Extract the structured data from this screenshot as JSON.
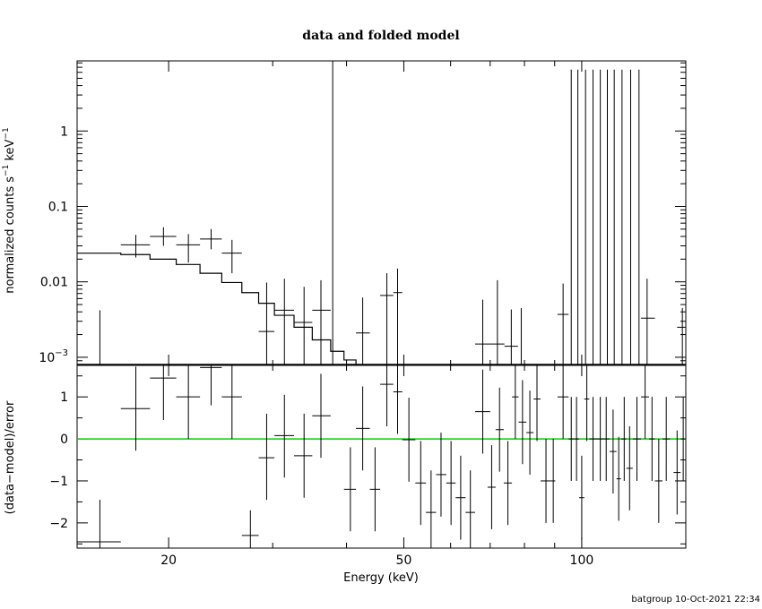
{
  "chart_data": [
    {
      "type": "scatter",
      "title": "data and folded model",
      "xlabel": "",
      "ylabel_main": "normalized counts s",
      "ylabel_sup1": "−1",
      "ylabel_mid": " keV",
      "ylabel_sup2": "−1",
      "xscale": "log",
      "yscale": "log",
      "xlim": [
        14,
        150
      ],
      "ylim": [
        0.00078,
        8.5
      ],
      "yticks": [
        {
          "value": 1,
          "label": "1"
        },
        {
          "value": 0.1,
          "label": "0.1"
        },
        {
          "value": 0.01,
          "label": "0.01"
        },
        {
          "value": 0.001,
          "base": "10",
          "exp": "−3"
        }
      ],
      "data_color": "#000000",
      "model_color": "#000000",
      "series": [
        {
          "kind": "data",
          "points": [
            {
              "x": 15.3,
              "xlo": 14.0,
              "xhi": 16.6,
              "y": 0.0008,
              "ylo": 0.0008,
              "yhi": 0.0042
            },
            {
              "x": 17.6,
              "xlo": 16.6,
              "xhi": 18.6,
              "y": 0.031,
              "ylo": 0.021,
              "yhi": 0.042
            },
            {
              "x": 19.6,
              "xlo": 18.6,
              "xhi": 20.6,
              "y": 0.04,
              "ylo": 0.03,
              "yhi": 0.053
            },
            {
              "x": 21.6,
              "xlo": 20.6,
              "xhi": 22.6,
              "y": 0.031,
              "ylo": 0.018,
              "yhi": 0.043
            },
            {
              "x": 23.6,
              "xlo": 22.6,
              "xhi": 24.6,
              "y": 0.037,
              "ylo": 0.027,
              "yhi": 0.05
            },
            {
              "x": 25.6,
              "xlo": 24.6,
              "xhi": 26.6,
              "y": 0.024,
              "ylo": 0.013,
              "yhi": 0.036
            },
            {
              "x": 29.3,
              "xlo": 28.4,
              "xhi": 30.2,
              "y": 0.0022,
              "ylo": 0.0008,
              "yhi": 0.0098
            },
            {
              "x": 31.4,
              "xlo": 30.2,
              "xhi": 32.6,
              "y": 0.0042,
              "ylo": 0.0008,
              "yhi": 0.011
            },
            {
              "x": 33.9,
              "xlo": 32.6,
              "xhi": 35.0,
              "y": 0.0029,
              "ylo": 0.0008,
              "yhi": 0.0086
            },
            {
              "x": 36.2,
              "xlo": 35.0,
              "xhi": 37.6,
              "y": 0.0042,
              "ylo": 0.0008,
              "yhi": 0.0105
            },
            {
              "x": 37.9,
              "xlo": 37.6,
              "xhi": 38.3,
              "y": 0.0008,
              "ylo": 0.0008,
              "yhi": 8.5
            },
            {
              "x": 42.6,
              "xlo": 41.5,
              "xhi": 43.8,
              "y": 0.0021,
              "ylo": 0.0008,
              "yhi": 0.0062
            },
            {
              "x": 46.8,
              "xlo": 45.6,
              "xhi": 48.0,
              "y": 0.0066,
              "ylo": 0.0008,
              "yhi": 0.013
            },
            {
              "x": 48.8,
              "xlo": 48.0,
              "xhi": 49.7,
              "y": 0.0072,
              "ylo": 0.0008,
              "yhi": 0.015
            },
            {
              "x": 68.0,
              "xlo": 66.0,
              "xhi": 70.0,
              "y": 0.0015,
              "ylo": 0.0008,
              "yhi": 0.0058
            },
            {
              "x": 72.0,
              "xlo": 70.0,
              "xhi": 74.0,
              "y": 0.0015,
              "ylo": 0.0008,
              "yhi": 0.0105
            },
            {
              "x": 76.0,
              "xlo": 74.0,
              "xhi": 78.0,
              "y": 0.0014,
              "ylo": 0.0008,
              "yhi": 0.0043
            },
            {
              "x": 79.0,
              "xlo": 78.0,
              "xhi": 80.0,
              "y": 0.0008,
              "ylo": 0.0008,
              "yhi": 0.0045
            },
            {
              "x": 93.0,
              "xlo": 91.0,
              "xhi": 95.0,
              "y": 0.0037,
              "ylo": 0.0008,
              "yhi": 0.0095
            },
            {
              "x": 129.0,
              "xlo": 126.0,
              "xhi": 133.0,
              "y": 0.0033,
              "ylo": 0.0008,
              "yhi": 0.011
            },
            {
              "x": 148.0,
              "xlo": 145.0,
              "xhi": 150.0,
              "y": 0.0025,
              "ylo": 0.0008,
              "yhi": 0.0045
            }
          ],
          "hi_bins": [
            {
              "x": 96.0,
              "xlo": 95.0,
              "xhi": 97.0,
              "yhi": 6.5
            },
            {
              "x": 98.5,
              "xlo": 97.0,
              "xhi": 100.0,
              "yhi": 6.5
            },
            {
              "x": 101.5,
              "xlo": 100.0,
              "xhi": 103.0,
              "yhi": 6.5
            },
            {
              "x": 104.5,
              "xlo": 103.0,
              "xhi": 106.0,
              "yhi": 6.5
            },
            {
              "x": 107.5,
              "xlo": 106.0,
              "xhi": 109.0,
              "yhi": 6.5
            },
            {
              "x": 110.5,
              "xlo": 109.0,
              "xhi": 112.0,
              "yhi": 6.5
            },
            {
              "x": 113.5,
              "xlo": 112.0,
              "xhi": 115.0,
              "yhi": 6.5
            },
            {
              "x": 117.0,
              "xlo": 115.0,
              "xhi": 119.0,
              "yhi": 6.5
            },
            {
              "x": 121.0,
              "xlo": 119.0,
              "xhi": 123.0,
              "yhi": 6.5
            },
            {
              "x": 125.0,
              "xlo": 123.0,
              "xhi": 127.0,
              "yhi": 6.5
            }
          ]
        },
        {
          "kind": "model",
          "steps": [
            {
              "xlo": 14.0,
              "xhi": 16.6,
              "y": 0.024
            },
            {
              "xlo": 16.6,
              "xhi": 18.6,
              "y": 0.023
            },
            {
              "xlo": 18.6,
              "xhi": 20.6,
              "y": 0.02
            },
            {
              "xlo": 20.6,
              "xhi": 22.6,
              "y": 0.017
            },
            {
              "xlo": 22.6,
              "xhi": 24.6,
              "y": 0.013
            },
            {
              "xlo": 24.6,
              "xhi": 26.6,
              "y": 0.0098
            },
            {
              "xlo": 26.6,
              "xhi": 28.4,
              "y": 0.0072
            },
            {
              "xlo": 28.4,
              "xhi": 30.2,
              "y": 0.0052
            },
            {
              "xlo": 30.2,
              "xhi": 32.6,
              "y": 0.0036
            },
            {
              "xlo": 32.6,
              "xhi": 35.0,
              "y": 0.0025
            },
            {
              "xlo": 35.0,
              "xhi": 37.6,
              "y": 0.0017
            },
            {
              "xlo": 37.6,
              "xhi": 39.6,
              "y": 0.0012
            },
            {
              "xlo": 39.6,
              "xhi": 41.5,
              "y": 0.00092
            },
            {
              "xlo": 41.5,
              "xhi": 43.8,
              "y": 0.0008
            }
          ]
        }
      ]
    },
    {
      "type": "scatter",
      "xlabel": "Energy (keV)",
      "ylabel": "(data−model)/error",
      "xscale": "log",
      "xlim": [
        14,
        150
      ],
      "ylim": [
        -2.6,
        1.75
      ],
      "xticks": [
        {
          "value": 20,
          "label": "20"
        },
        {
          "value": 50,
          "label": "50"
        },
        {
          "value": 100,
          "label": "100"
        }
      ],
      "yticks": [
        {
          "value": 1,
          "label": "1"
        },
        {
          "value": 0,
          "label": "0"
        },
        {
          "value": -1,
          "label": "−1"
        },
        {
          "value": -2,
          "label": "−2"
        }
      ],
      "zero_line_color": "#00d000",
      "points": [
        {
          "x": 15.3,
          "xlo": 14.0,
          "xhi": 16.6,
          "y": -2.45,
          "ylo": -2.6,
          "yhi": -1.45
        },
        {
          "x": 17.6,
          "xlo": 16.6,
          "xhi": 18.6,
          "y": 0.72,
          "ylo": -0.28,
          "yhi": 1.72
        },
        {
          "x": 19.6,
          "xlo": 18.6,
          "xhi": 20.6,
          "y": 1.45,
          "ylo": 0.45,
          "yhi": 1.75
        },
        {
          "x": 21.6,
          "xlo": 20.6,
          "xhi": 22.6,
          "y": 1.0,
          "ylo": 0.0,
          "yhi": 1.75
        },
        {
          "x": 23.6,
          "xlo": 22.6,
          "xhi": 24.6,
          "y": 1.7,
          "ylo": 0.8,
          "yhi": 1.75
        },
        {
          "x": 25.6,
          "xlo": 24.6,
          "xhi": 26.6,
          "y": 1.0,
          "ylo": 0.0,
          "yhi": 1.75
        },
        {
          "x": 27.5,
          "xlo": 26.6,
          "xhi": 28.4,
          "y": -2.3,
          "ylo": -2.6,
          "yhi": -1.7
        },
        {
          "x": 29.3,
          "xlo": 28.4,
          "xhi": 30.2,
          "y": -0.45,
          "ylo": -1.45,
          "yhi": 0.6
        },
        {
          "x": 31.4,
          "xlo": 30.2,
          "xhi": 32.6,
          "y": 0.08,
          "ylo": -0.92,
          "yhi": 1.05
        },
        {
          "x": 33.9,
          "xlo": 32.6,
          "xhi": 35.0,
          "y": -0.4,
          "ylo": -1.4,
          "yhi": 0.6
        },
        {
          "x": 36.2,
          "xlo": 35.0,
          "xhi": 37.6,
          "y": 0.55,
          "ylo": -0.45,
          "yhi": 1.55
        },
        {
          "x": 40.6,
          "xlo": 39.6,
          "xhi": 41.5,
          "y": -1.2,
          "ylo": -2.2,
          "yhi": -0.2
        },
        {
          "x": 42.6,
          "xlo": 41.5,
          "xhi": 43.8,
          "y": 0.25,
          "ylo": -0.75,
          "yhi": 1.25
        },
        {
          "x": 44.7,
          "xlo": 43.8,
          "xhi": 45.6,
          "y": -1.2,
          "ylo": -2.2,
          "yhi": -0.2
        },
        {
          "x": 46.8,
          "xlo": 45.6,
          "xhi": 48.0,
          "y": 1.3,
          "ylo": 0.3,
          "yhi": 1.75
        },
        {
          "x": 48.8,
          "xlo": 48.0,
          "xhi": 49.7,
          "y": 1.12,
          "ylo": 0.12,
          "yhi": 1.75
        },
        {
          "x": 51.0,
          "xlo": 49.7,
          "xhi": 52.3,
          "y": -0.02,
          "ylo": -1.02,
          "yhi": 0.98
        },
        {
          "x": 53.4,
          "xlo": 52.3,
          "xhi": 54.5,
          "y": -1.05,
          "ylo": -2.05,
          "yhi": -0.05
        },
        {
          "x": 55.6,
          "xlo": 54.5,
          "xhi": 56.7,
          "y": -1.75,
          "ylo": -2.6,
          "yhi": -0.75
        },
        {
          "x": 57.8,
          "xlo": 56.7,
          "xhi": 59.0,
          "y": -0.85,
          "ylo": -1.85,
          "yhi": 0.15
        },
        {
          "x": 60.1,
          "xlo": 59.0,
          "xhi": 61.2,
          "y": -1.05,
          "ylo": -2.05,
          "yhi": -0.05
        },
        {
          "x": 62.4,
          "xlo": 61.2,
          "xhi": 63.6,
          "y": -1.4,
          "ylo": -2.4,
          "yhi": -0.4
        },
        {
          "x": 64.8,
          "xlo": 63.6,
          "xhi": 66.0,
          "y": -1.75,
          "ylo": -2.6,
          "yhi": -0.75
        },
        {
          "x": 68.0,
          "xlo": 66.0,
          "xhi": 70.0,
          "y": 0.65,
          "ylo": -0.35,
          "yhi": 1.65
        },
        {
          "x": 70.4,
          "xlo": 69.3,
          "xhi": 71.5,
          "y": -1.15,
          "ylo": -2.15,
          "yhi": -0.15
        },
        {
          "x": 72.6,
          "xlo": 71.5,
          "xhi": 73.8,
          "y": 0.22,
          "ylo": -0.78,
          "yhi": 1.22
        },
        {
          "x": 75.0,
          "xlo": 73.8,
          "xhi": 76.2,
          "y": -1.05,
          "ylo": -2.05,
          "yhi": -0.05
        },
        {
          "x": 77.2,
          "xlo": 76.2,
          "xhi": 78.2,
          "y": 1.0,
          "ylo": 0.0,
          "yhi": 1.75
        },
        {
          "x": 79.4,
          "xlo": 78.2,
          "xhi": 80.6,
          "y": 0.4,
          "ylo": -0.6,
          "yhi": 1.4
        },
        {
          "x": 81.7,
          "xlo": 80.6,
          "xhi": 82.9,
          "y": 0.15,
          "ylo": -0.85,
          "yhi": 1.15
        },
        {
          "x": 84.0,
          "xlo": 82.9,
          "xhi": 85.2,
          "y": 0.95,
          "ylo": -0.05,
          "yhi": 1.75
        },
        {
          "x": 87.0,
          "xlo": 85.2,
          "xhi": 88.8,
          "y": -1.0,
          "ylo": -2.0,
          "yhi": 0.0
        },
        {
          "x": 89.5,
          "xlo": 88.8,
          "xhi": 90.2,
          "y": -1.0,
          "ylo": -2.0,
          "yhi": 0.0
        },
        {
          "x": 93.0,
          "xlo": 91.0,
          "xhi": 95.0,
          "y": 1.0,
          "ylo": 0.0,
          "yhi": 1.75
        },
        {
          "x": 100.0,
          "xlo": 99.0,
          "xhi": 101.0,
          "y": -1.4,
          "ylo": -2.4,
          "yhi": -0.4
        },
        {
          "x": 102.0,
          "xlo": 101.0,
          "xhi": 103.0,
          "y": 0.95,
          "ylo": -0.05,
          "yhi": 1.75
        },
        {
          "x": 113.0,
          "xlo": 111.5,
          "xhi": 114.5,
          "y": -0.3,
          "ylo": -1.3,
          "yhi": 0.7
        },
        {
          "x": 115.5,
          "xlo": 114.5,
          "xhi": 116.5,
          "y": -0.95,
          "ylo": -1.95,
          "yhi": 0.05
        },
        {
          "x": 120.5,
          "xlo": 119.0,
          "xhi": 122.0,
          "y": -0.7,
          "ylo": -1.7,
          "yhi": 0.3
        },
        {
          "x": 128.0,
          "xlo": 126.0,
          "xhi": 130.0,
          "y": 1.0,
          "ylo": 0.0,
          "yhi": 1.75
        },
        {
          "x": 135.0,
          "xlo": 133.0,
          "xhi": 137.0,
          "y": -1.0,
          "ylo": -2.0,
          "yhi": 0.0
        },
        {
          "x": 145.0,
          "xlo": 143.0,
          "xhi": 147.0,
          "y": -0.8,
          "ylo": -1.8,
          "yhi": 0.2
        }
      ],
      "dropouts": [
        {
          "x": 96.0,
          "xlo": 95.0,
          "xhi": 97.0,
          "ylo": -1.0,
          "yhi": 1.0
        },
        {
          "x": 98.0,
          "xlo": 97.0,
          "xhi": 99.0,
          "ylo": -1.0,
          "yhi": 1.0
        },
        {
          "x": 104.5,
          "xlo": 103.0,
          "xhi": 106.0,
          "ylo": -1.0,
          "yhi": 1.0
        },
        {
          "x": 107.5,
          "xlo": 106.0,
          "xhi": 109.0,
          "ylo": -1.0,
          "yhi": 1.0
        },
        {
          "x": 110.0,
          "xlo": 109.0,
          "xhi": 111.5,
          "ylo": -1.0,
          "yhi": 1.0
        },
        {
          "x": 118.0,
          "xlo": 116.5,
          "xhi": 119.0,
          "ylo": -1.0,
          "yhi": 1.0
        },
        {
          "x": 124.0,
          "xlo": 122.0,
          "xhi": 126.0,
          "ylo": -1.0,
          "yhi": 1.0
        },
        {
          "x": 131.5,
          "xlo": 130.0,
          "xhi": 133.0,
          "ylo": -1.0,
          "yhi": 1.0
        },
        {
          "x": 139.0,
          "xlo": 137.0,
          "xhi": 141.0,
          "ylo": -1.0,
          "yhi": 1.0
        },
        {
          "x": 148.5,
          "xlo": 147.0,
          "xhi": 150.0,
          "ylo": -1.0,
          "yhi": 1.0
        }
      ]
    }
  ],
  "footer": {
    "stamp": "batgroup 10-Oct-2021 22:34"
  }
}
